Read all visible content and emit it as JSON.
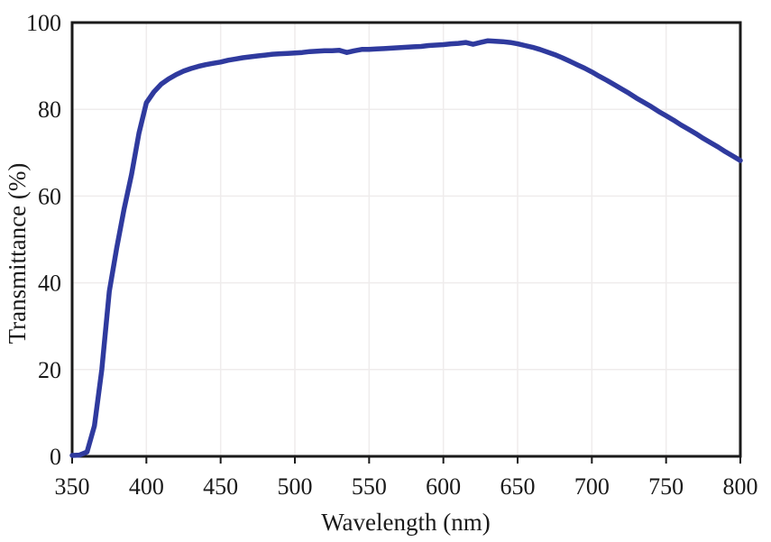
{
  "chart_data": {
    "type": "line",
    "title": "",
    "xlabel": "Wavelength (nm)",
    "ylabel": "Transmittance (%)",
    "xlim": [
      350,
      800
    ],
    "ylim": [
      0,
      100
    ],
    "xticks": [
      350,
      400,
      450,
      500,
      550,
      600,
      650,
      700,
      750,
      800
    ],
    "yticks": [
      0,
      20,
      40,
      60,
      80,
      100
    ],
    "grid": true,
    "legend": "none",
    "series": [
      {
        "name": "Transmittance",
        "color": "#2f3a9e",
        "x": [
          350,
          355,
          360,
          365,
          370,
          375,
          380,
          385,
          390,
          395,
          400,
          405,
          410,
          415,
          420,
          425,
          430,
          435,
          440,
          445,
          450,
          455,
          460,
          465,
          470,
          475,
          480,
          485,
          490,
          495,
          500,
          505,
          510,
          515,
          520,
          525,
          530,
          535,
          540,
          545,
          550,
          555,
          560,
          565,
          570,
          575,
          580,
          585,
          590,
          595,
          600,
          605,
          610,
          615,
          620,
          625,
          630,
          635,
          640,
          645,
          650,
          655,
          660,
          665,
          670,
          675,
          680,
          685,
          690,
          695,
          700,
          705,
          710,
          715,
          720,
          725,
          730,
          735,
          740,
          745,
          750,
          755,
          760,
          765,
          770,
          775,
          780,
          785,
          790,
          795,
          800
        ],
        "y": [
          0.2,
          0.3,
          1,
          7,
          20,
          38,
          48,
          57,
          65,
          74.5,
          81.5,
          84,
          85.8,
          87,
          88,
          88.8,
          89.4,
          89.9,
          90.3,
          90.6,
          90.9,
          91.3,
          91.6,
          91.9,
          92.1,
          92.3,
          92.5,
          92.7,
          92.8,
          92.9,
          93,
          93.1,
          93.3,
          93.4,
          93.5,
          93.5,
          93.6,
          93.1,
          93.5,
          93.8,
          93.8,
          93.9,
          94,
          94.1,
          94.2,
          94.3,
          94.4,
          94.5,
          94.7,
          94.8,
          94.9,
          95.1,
          95.2,
          95.4,
          95,
          95.4,
          95.8,
          95.7,
          95.6,
          95.4,
          95.1,
          94.7,
          94.3,
          93.8,
          93.2,
          92.6,
          91.9,
          91.1,
          90.3,
          89.5,
          88.6,
          87.6,
          86.7,
          85.7,
          84.7,
          83.7,
          82.6,
          81.6,
          80.6,
          79.5,
          78.5,
          77.5,
          76.4,
          75.4,
          74.4,
          73.3,
          72.3,
          71.3,
          70.2,
          69.2,
          68.2
        ]
      }
    ]
  },
  "styles": {
    "line_color": "#2f3a9e",
    "axis_color": "#1a1a1a",
    "grid_color": "#efecec",
    "text_color": "#1a1a1a",
    "background": "#ffffff"
  }
}
